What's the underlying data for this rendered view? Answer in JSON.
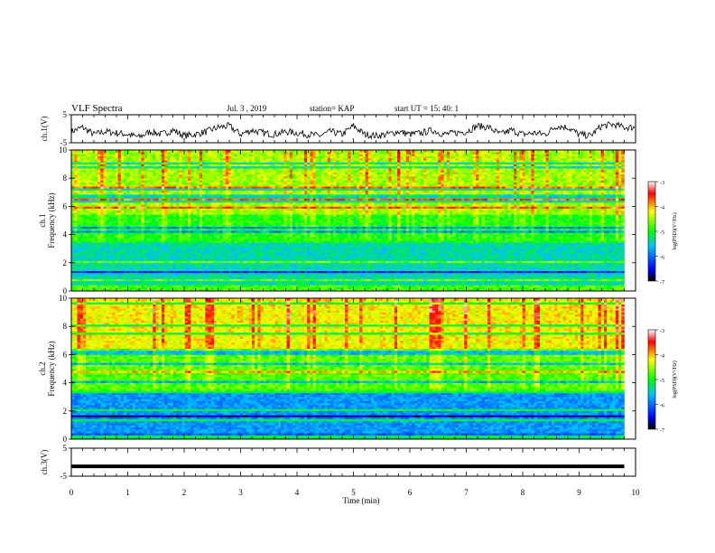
{
  "header": {
    "title": "VLF Spectra",
    "date": "Jul. 3 , 2019",
    "station": "station= KAP",
    "start": "start UT = 15: 40: 1"
  },
  "chart_data": [
    {
      "type": "line",
      "name": "ch1-waveform",
      "ylabel": "ch.1(V)",
      "ylim": [
        -5,
        5
      ],
      "yticks": [
        "5",
        "-5"
      ],
      "xlim": [
        0,
        10
      ],
      "x": [
        0,
        0.2,
        0.4,
        0.6,
        0.8,
        1.0,
        1.2,
        1.4,
        1.6,
        1.8,
        2.0,
        2.2,
        2.4,
        2.6,
        2.8,
        3.0,
        3.2,
        3.4,
        3.6,
        3.8,
        4.0,
        4.2,
        4.4,
        4.6,
        4.8,
        5.0,
        5.2,
        5.4,
        5.6,
        5.8,
        6.0,
        6.2,
        6.4,
        6.6,
        6.8,
        7.0,
        7.2,
        7.4,
        7.6,
        7.8,
        8.0,
        8.2,
        8.4,
        8.6,
        8.8,
        9.0,
        9.2,
        9.4,
        9.6,
        9.8
      ],
      "y": [
        -1,
        0.5,
        -2,
        -1,
        -1.5,
        -2,
        -3,
        -1,
        -2,
        -0.5,
        -2.5,
        -2,
        -1,
        0.5,
        1,
        -2,
        -0.5,
        -1.5,
        -2,
        -1,
        -1.5,
        -2,
        -2.5,
        -1,
        -2,
        1,
        -2,
        -2.5,
        -2,
        -1,
        -2,
        -1.5,
        -0.5,
        -2,
        -1.5,
        -1,
        1,
        0.5,
        -2,
        -0.5,
        -2,
        -1.5,
        -2,
        1,
        0.5,
        -2,
        -2.5,
        1,
        1.5,
        0.5
      ],
      "color": "#000000"
    },
    {
      "type": "heatmap",
      "name": "ch1-spectrogram",
      "ylabel": "ch.1 Frequency (kHz)",
      "ylim": [
        0,
        10
      ],
      "yticks": [
        "0",
        "2",
        "4",
        "6",
        "8",
        "10"
      ],
      "xlim": [
        0,
        10
      ],
      "colorbar": {
        "label": "log(PSD)(V²/Hz)",
        "range": [
          -7,
          -3
        ],
        "ticks": [
          "-3",
          "-4",
          "-5",
          "-6",
          "-7"
        ]
      },
      "band_profile": [
        {
          "from": 0,
          "to": 0.5,
          "level": -4.8
        },
        {
          "from": 0.5,
          "to": 3.5,
          "level": -5.4
        },
        {
          "from": 3.5,
          "to": 5.5,
          "level": -5.0
        },
        {
          "from": 5.5,
          "to": 10,
          "level": -4.6
        }
      ],
      "colormap": "jet"
    },
    {
      "type": "heatmap",
      "name": "ch2-spectrogram",
      "ylabel": "ch.2 Frequency (kHz)",
      "ylim": [
        0,
        10
      ],
      "yticks": [
        "0",
        "2",
        "4",
        "6",
        "8",
        "10"
      ],
      "xlim": [
        0,
        10
      ],
      "colorbar": {
        "label": "log(PSD)(V²/Hz)",
        "range": [
          -7,
          -3
        ],
        "ticks": [
          "-3",
          "-4",
          "-5",
          "-6",
          "-7"
        ]
      },
      "band_profile": [
        {
          "from": 0,
          "to": 0.5,
          "level": -5.2
        },
        {
          "from": 0.5,
          "to": 3.5,
          "level": -5.8
        },
        {
          "from": 3.5,
          "to": 6.5,
          "level": -4.8
        },
        {
          "from": 6.5,
          "to": 10,
          "level": -4.3
        }
      ],
      "colormap": "jet"
    },
    {
      "type": "line",
      "name": "ch3-waveform",
      "ylabel": "ch.3(V)",
      "ylim": [
        -5,
        5
      ],
      "yticks": [
        "5",
        "-5"
      ],
      "xlim": [
        0,
        10
      ],
      "x": [
        0,
        9.8
      ],
      "y": [
        -1.5,
        -1.5
      ],
      "color": "#000000"
    }
  ],
  "xaxis": {
    "label": "Time (min)",
    "ticks": [
      "0",
      "1",
      "2",
      "3",
      "4",
      "5",
      "6",
      "7",
      "8",
      "9",
      "10"
    ]
  }
}
